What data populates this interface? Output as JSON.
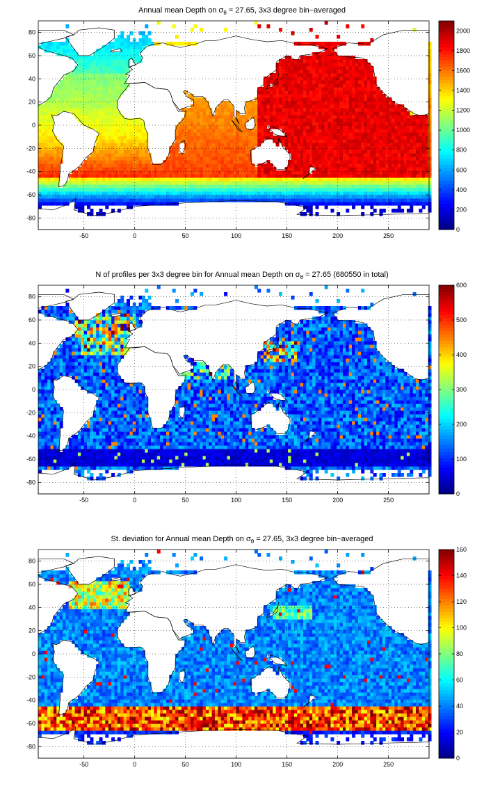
{
  "panels": [
    {
      "title_pre": "Annual mean Depth on ",
      "title_sigma": "σ",
      "title_sub": "θ",
      "title_post": " = 27.65, 3x3 degree bin−averaged",
      "colorbar": {
        "min": 0,
        "max": 2100,
        "ticks": [
          "0",
          "200",
          "400",
          "600",
          "800",
          "1000",
          "1200",
          "1400",
          "1600",
          "1800",
          "2000"
        ]
      },
      "field": "depth"
    },
    {
      "title_pre": "N of profiles per 3x3 degree bin for Annual mean Depth on ",
      "title_sigma": "σ",
      "title_sub": "θ",
      "title_post": " = 27.65 (680550 in total)",
      "colorbar": {
        "min": 0,
        "max": 600,
        "ticks": [
          "0",
          "100",
          "200",
          "300",
          "400",
          "500",
          "600"
        ]
      },
      "field": "count"
    },
    {
      "title_pre": "St. deviation for Annual mean Depth on ",
      "title_sigma": "σ",
      "title_sub": "θ",
      "title_post": " = 27.65, 3x3 degree bin−averaged",
      "colorbar": {
        "min": 0,
        "max": 160,
        "ticks": [
          "0",
          "20",
          "40",
          "60",
          "80",
          "100",
          "120",
          "140",
          "160"
        ]
      },
      "field": "std"
    }
  ],
  "axes": {
    "x_ticks": [
      "-50",
      "0",
      "50",
      "100",
      "150",
      "200",
      "250"
    ],
    "y_ticks": [
      "80",
      "60",
      "40",
      "20",
      "0",
      "-20",
      "-40",
      "-60",
      "-80"
    ],
    "xlim": [
      -95,
      290
    ],
    "ylim": [
      -90,
      90
    ]
  },
  "chart_data": {
    "type": "heatmap",
    "bin_size_deg": 3,
    "grid": "dotted",
    "colormap": "jet"
  }
}
